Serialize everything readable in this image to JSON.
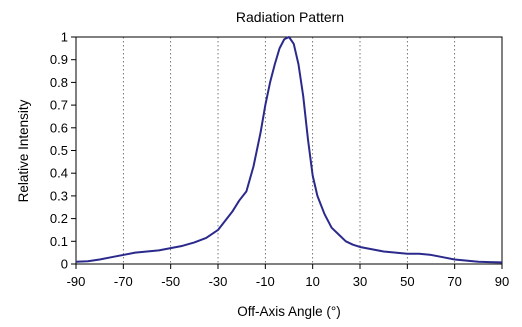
{
  "chart_data": {
    "type": "line",
    "title": "Radiation Pattern",
    "xlabel": "Off-Axis Angle (°)",
    "ylabel": "Relative Intensity",
    "xlim": [
      -90,
      90
    ],
    "ylim": [
      0,
      1
    ],
    "x_ticks": [
      "-90",
      "-70",
      "-50",
      "-30",
      "-10",
      "10",
      "30",
      "50",
      "70",
      "90"
    ],
    "y_ticks": [
      "0",
      "0.1",
      "0.2",
      "0.3",
      "0.4",
      "0.5",
      "0.6",
      "0.7",
      "0.8",
      "0.9",
      "1"
    ],
    "grid": {
      "vertical": true,
      "horizontal": false,
      "style": "dotted"
    },
    "legend": "none",
    "series": [
      {
        "color": "#2b2a8c",
        "x": [
          -90,
          -85,
          -80,
          -75,
          -70,
          -65,
          -60,
          -55,
          -50,
          -45,
          -40,
          -35,
          -30,
          -27,
          -24,
          -21,
          -18,
          -15,
          -12,
          -10,
          -8,
          -6,
          -4,
          -2,
          0,
          2,
          4,
          6,
          8,
          10,
          12,
          15,
          18,
          21,
          24,
          27,
          30,
          35,
          40,
          45,
          50,
          55,
          60,
          65,
          70,
          75,
          80,
          85,
          90
        ],
        "y": [
          0.01,
          0.012,
          0.02,
          0.03,
          0.04,
          0.05,
          0.055,
          0.06,
          0.07,
          0.08,
          0.095,
          0.115,
          0.15,
          0.19,
          0.23,
          0.28,
          0.32,
          0.43,
          0.58,
          0.7,
          0.8,
          0.88,
          0.95,
          0.99,
          1.0,
          0.97,
          0.88,
          0.74,
          0.55,
          0.39,
          0.3,
          0.22,
          0.16,
          0.13,
          0.1,
          0.085,
          0.075,
          0.065,
          0.055,
          0.05,
          0.045,
          0.045,
          0.04,
          0.03,
          0.02,
          0.015,
          0.01,
          0.008,
          0.007
        ]
      }
    ]
  }
}
